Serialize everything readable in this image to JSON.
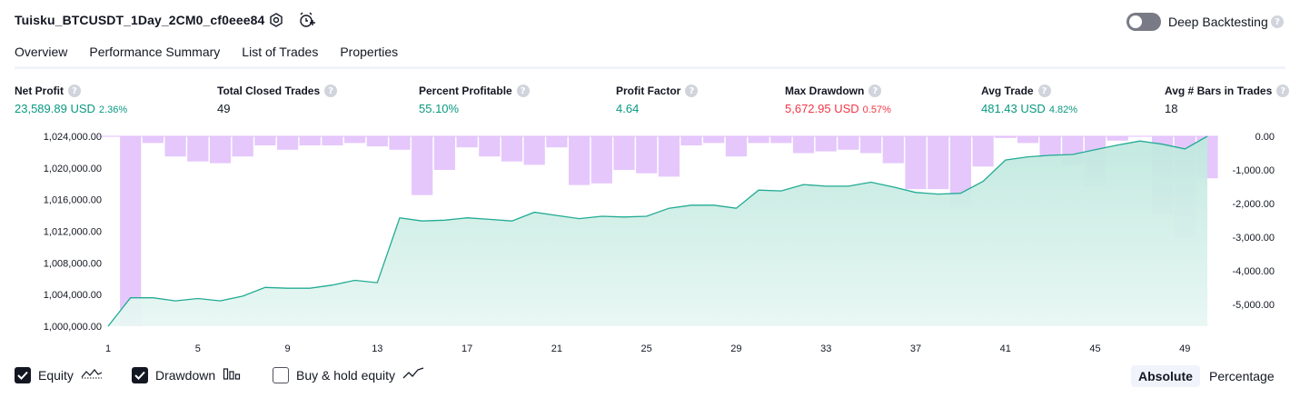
{
  "header": {
    "title": "Tuisku_BTCUSDT_1Day_2CM0_cf0eee84",
    "deep_backtesting_label": "Deep Backtesting",
    "help_glyph": "?"
  },
  "tabs": [
    {
      "label": "Overview",
      "active": true
    },
    {
      "label": "Performance Summary",
      "active": false
    },
    {
      "label": "List of Trades",
      "active": false
    },
    {
      "label": "Properties",
      "active": false
    }
  ],
  "metrics": {
    "net_profit": {
      "label": "Net Profit",
      "value": "23,589.89 USD",
      "sub": "2.36%"
    },
    "total_closed_trades": {
      "label": "Total Closed Trades",
      "value": "49"
    },
    "percent_profitable": {
      "label": "Percent Profitable",
      "value": "55.10%"
    },
    "profit_factor": {
      "label": "Profit Factor",
      "value": "4.64"
    },
    "max_drawdown": {
      "label": "Max Drawdown",
      "value": "5,672.95 USD",
      "sub": "0.57%"
    },
    "avg_trade": {
      "label": "Avg Trade",
      "value": "481.43 USD",
      "sub": "4.82%"
    },
    "avg_bars": {
      "label": "Avg # Bars in Trades",
      "value": "18"
    }
  },
  "colors": {
    "equity_line": "#22ab94",
    "equity_fill": "#d5f1ea",
    "drawdown_bar": "#e1bdfb",
    "drawdown_overlap": "#b3b6e6",
    "positive": "#089981",
    "negative": "#f23645"
  },
  "legend": {
    "equity": {
      "label": "Equity",
      "checked": true,
      "icon": "equity-line-icon"
    },
    "drawdown": {
      "label": "Drawdown",
      "checked": true,
      "icon": "drawdown-bars-icon"
    },
    "buy_hold": {
      "label": "Buy & hold equity",
      "checked": false,
      "icon": "buy-hold-line-icon"
    }
  },
  "mode": {
    "absolute": "Absolute",
    "percentage": "Percentage",
    "selected": "Absolute"
  },
  "chart_data": {
    "type": "line+bar",
    "x": [
      1,
      2,
      3,
      4,
      5,
      6,
      7,
      8,
      9,
      10,
      11,
      12,
      13,
      14,
      15,
      16,
      17,
      18,
      19,
      20,
      21,
      22,
      23,
      24,
      25,
      26,
      27,
      28,
      29,
      30,
      31,
      32,
      33,
      34,
      35,
      36,
      37,
      38,
      39,
      40,
      41,
      42,
      43,
      44,
      45,
      46,
      47,
      48,
      49,
      50
    ],
    "x_ticks": [
      1,
      5,
      9,
      13,
      17,
      21,
      25,
      29,
      33,
      37,
      41,
      45,
      49
    ],
    "left_axis": {
      "ticks": [
        "1,024,000.00",
        "1,020,000.00",
        "1,016,000.00",
        "1,012,000.00",
        "1,008,000.00",
        "1,004,000.00",
        "1,000,000.00"
      ],
      "ylim": [
        1000000,
        1024000
      ]
    },
    "right_axis": {
      "ticks": [
        "0.00",
        "-1,000.00",
        "-2,000.00",
        "-3,000.00",
        "-4,000.00",
        "-5,000.00"
      ],
      "ylim": [
        -5650,
        0
      ]
    },
    "series": [
      {
        "name": "Equity",
        "kind": "line",
        "values": [
          1000000,
          1003600,
          1003600,
          1003200,
          1003500,
          1003200,
          1003800,
          1004900,
          1004800,
          1004800,
          1005200,
          1005800,
          1005500,
          1013700,
          1013300,
          1013400,
          1013700,
          1013500,
          1013300,
          1014400,
          1014000,
          1013600,
          1013900,
          1013800,
          1013900,
          1014900,
          1015300,
          1015300,
          1014900,
          1017200,
          1017100,
          1017900,
          1017700,
          1017700,
          1018200,
          1017600,
          1016900,
          1016700,
          1016800,
          1018300,
          1021000,
          1021400,
          1021600,
          1021700,
          1022300,
          1022900,
          1023400,
          1023000,
          1022400,
          1024000
        ]
      },
      {
        "name": "Drawdown",
        "kind": "bar",
        "values": [
          0,
          -5650,
          -200,
          -600,
          -750,
          -800,
          -600,
          -270,
          -400,
          -270,
          -270,
          -200,
          -300,
          -400,
          -1750,
          -1000,
          -330,
          -600,
          -750,
          -850,
          -330,
          -1450,
          -1400,
          -1000,
          -1100,
          -1200,
          -270,
          -200,
          -600,
          -200,
          -200,
          -500,
          -450,
          -400,
          -500,
          -800,
          -1570,
          -1570,
          -2100,
          -900,
          -50,
          -200,
          -600,
          -850,
          -1500,
          -130,
          0,
          -2300,
          -3000,
          -1250
        ]
      }
    ]
  }
}
